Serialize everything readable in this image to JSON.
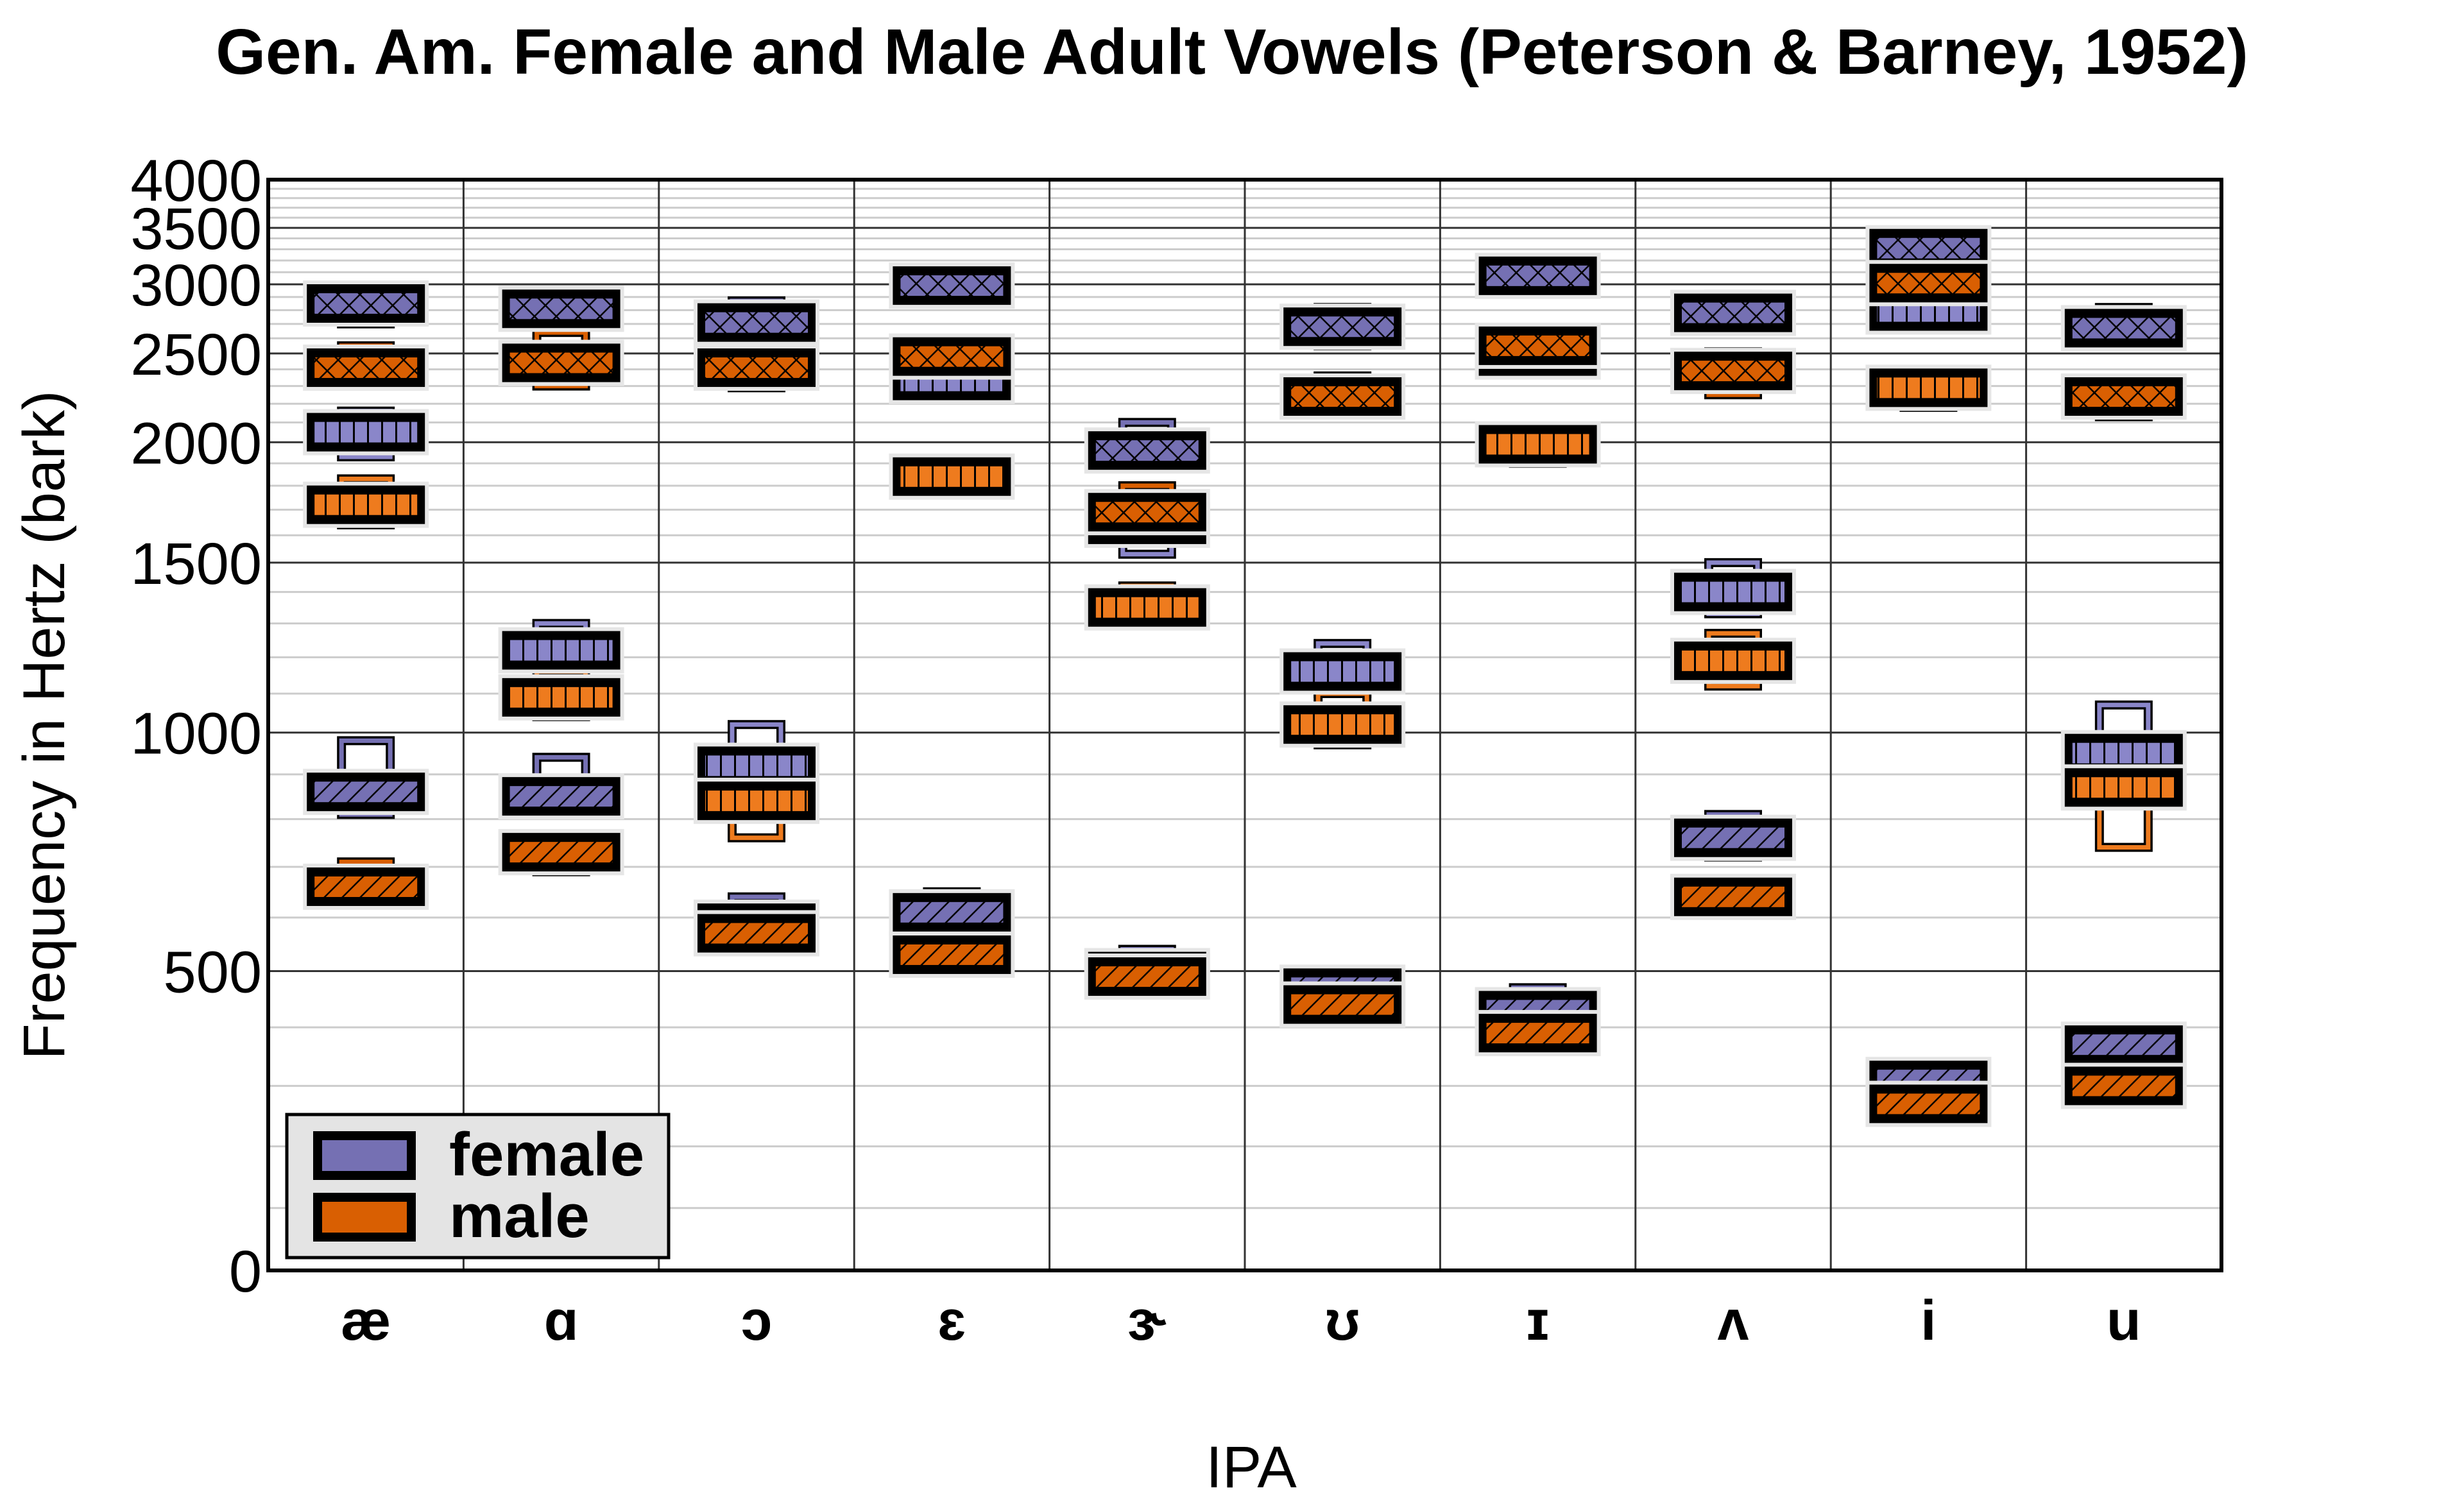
{
  "chart_data": {
    "type": "box",
    "title": "Gen. Am. Female and Male Adult Vowels (Peterson & Barney, 1952)",
    "xlabel": "IPA",
    "ylabel": "Frequency in Hertz (bark)",
    "yscale": "bark",
    "ylim": [
      0,
      4000
    ],
    "yticks": [
      0,
      500,
      1000,
      1500,
      2000,
      2500,
      3000,
      3500,
      4000
    ],
    "grid": true,
    "legend_position": "bottom-left",
    "legend": [
      {
        "name": "female",
        "color": "#7570b3"
      },
      {
        "name": "male",
        "color": "#d95f02"
      }
    ],
    "colors": {
      "female": "#7570b3",
      "female_f2": "#8a86c9",
      "male": "#d95f02",
      "male_f2": "#ee7b1e"
    },
    "categories": [
      "æ",
      "ɑ",
      "ɔ",
      "ɛ",
      "ɝ",
      "ʊ",
      "ɪ",
      "ʌ",
      "i",
      "u"
    ],
    "series": [
      {
        "name": "female",
        "formants": {
          "F1": [
            {
              "mean": 860,
              "range": [
                810,
                980
              ]
            },
            {
              "mean": 850,
              "range": [
                810,
                940
              ]
            },
            {
              "mean": 590,
              "range": [
                570,
                640
              ]
            },
            {
              "mean": 610,
              "range": [
                590,
                650
              ]
            },
            {
              "mean": 500,
              "range": [
                480,
                540
              ]
            },
            {
              "mean": 470,
              "range": [
                450,
                500
              ]
            },
            {
              "mean": 430,
              "range": [
                410,
                470
              ]
            },
            {
              "mean": 760,
              "range": [
                720,
                810
              ]
            },
            {
              "mean": 310,
              "range": [
                290,
                340
              ]
            },
            {
              "mean": 370,
              "range": [
                340,
                400
              ]
            }
          ],
          "F2": [
            {
              "mean": 2050,
              "range": [
                1930,
                2160
              ]
            },
            {
              "mean": 1220,
              "range": [
                1190,
                1300
              ]
            },
            {
              "mean": 920,
              "range": [
                880,
                1020
              ]
            },
            {
              "mean": 2330,
              "range": [
                2280,
                2400
              ]
            },
            {
              "mean": 1640,
              "range": [
                1530,
                1700
              ]
            },
            {
              "mean": 1160,
              "range": [
                1100,
                1240
              ]
            },
            {
              "mean": 2480,
              "range": [
                2380,
                2550
              ]
            },
            {
              "mean": 1400,
              "range": [
                1330,
                1500
              ]
            },
            {
              "mean": 2790,
              "range": [
                2700,
                2900
              ]
            },
            {
              "mean": 950,
              "range": [
                900,
                1070
              ]
            }
          ],
          "F3": [
            {
              "mean": 2850,
              "range": [
                2700,
                2950
              ]
            },
            {
              "mean": 2810,
              "range": [
                2700,
                2930
              ]
            },
            {
              "mean": 2710,
              "range": [
                2650,
                2870
              ]
            },
            {
              "mean": 2990,
              "range": [
                2950,
                3030
              ]
            },
            {
              "mean": 1960,
              "range": [
                1900,
                2100
              ]
            },
            {
              "mean": 2680,
              "range": [
                2550,
                2820
              ]
            },
            {
              "mean": 3070,
              "range": [
                3000,
                3150
              ]
            },
            {
              "mean": 2780,
              "range": [
                2700,
                2920
              ]
            },
            {
              "mean": 3310,
              "range": [
                3200,
                3400
              ]
            },
            {
              "mean": 2670,
              "range": [
                2550,
                2820
              ]
            }
          ]
        }
      },
      {
        "name": "male",
        "formants": {
          "F1": [
            {
              "mean": 660,
              "range": [
                630,
                710
              ]
            },
            {
              "mean": 730,
              "range": [
                690,
                760
              ]
            },
            {
              "mean": 570,
              "range": [
                550,
                590
              ]
            },
            {
              "mean": 530,
              "range": [
                510,
                570
              ]
            },
            {
              "mean": 490,
              "range": [
                460,
                510
              ]
            },
            {
              "mean": 440,
              "range": [
                420,
                460
              ]
            },
            {
              "mean": 390,
              "range": [
                370,
                420
              ]
            },
            {
              "mean": 640,
              "range": [
                610,
                660
              ]
            },
            {
              "mean": 270,
              "range": [
                250,
                290
              ]
            },
            {
              "mean": 300,
              "range": [
                280,
                340
              ]
            }
          ],
          "F2": [
            {
              "mean": 1720,
              "range": [
                1640,
                1830
              ]
            },
            {
              "mean": 1090,
              "range": [
                1040,
                1160
              ]
            },
            {
              "mean": 840,
              "range": [
                760,
                900
              ]
            },
            {
              "mean": 1840,
              "range": [
                1780,
                1920
              ]
            },
            {
              "mean": 1350,
              "range": [
                1300,
                1420
              ]
            },
            {
              "mean": 1020,
              "range": [
                970,
                1100
              ]
            },
            {
              "mean": 1990,
              "range": [
                1900,
                2050
              ]
            },
            {
              "mean": 1190,
              "range": [
                1120,
                1270
              ]
            },
            {
              "mean": 2290,
              "range": [
                2180,
                2380
              ]
            },
            {
              "mean": 870,
              "range": [
                740,
                900
              ]
            }
          ],
          "F3": [
            {
              "mean": 2410,
              "range": [
                2330,
                2550
              ]
            },
            {
              "mean": 2440,
              "range": [
                2300,
                2640
              ]
            },
            {
              "mean": 2410,
              "range": [
                2290,
                2560
              ]
            },
            {
              "mean": 2480,
              "range": [
                2400,
                2550
              ]
            },
            {
              "mean": 1690,
              "range": [
                1600,
                1800
              ]
            },
            {
              "mean": 2240,
              "range": [
                2160,
                2360
              ]
            },
            {
              "mean": 2550,
              "range": [
                2380,
                2670
              ]
            },
            {
              "mean": 2390,
              "range": [
                2250,
                2510
              ]
            },
            {
              "mean": 3010,
              "range": [
                2800,
                3100
              ]
            },
            {
              "mean": 2240,
              "range": [
                2130,
                2300
              ]
            }
          ]
        }
      }
    ]
  }
}
